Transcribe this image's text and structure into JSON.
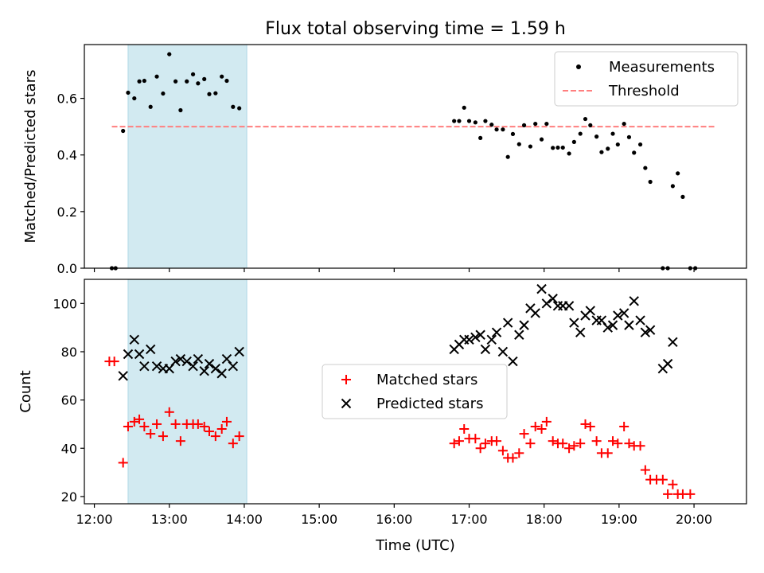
{
  "figure": {
    "title": "Flux total observing time = 1.59 h",
    "xlabel": "Time (UTC)"
  },
  "colors": {
    "shade": "#add8e6",
    "threshold": "#ff7f7f",
    "measurements": "#000000",
    "matched": "#ff0000",
    "predicted": "#000000"
  },
  "chart_data": [
    {
      "type": "scatter",
      "ylabel": "Matched/Predicted stars",
      "xlim": [
        "11:52",
        "20:42"
      ],
      "ylim": [
        0.0,
        0.79
      ],
      "xticks": [
        "12:00",
        "13:00",
        "14:00",
        "15:00",
        "16:00",
        "17:00",
        "18:00",
        "19:00",
        "20:00"
      ],
      "xtick_labels_visible": false,
      "yticks": [
        0.0,
        0.2,
        0.4,
        0.6
      ],
      "ytick_labels": [
        "0.0",
        "0.2",
        "0.4",
        "0.6"
      ],
      "shaded_interval": [
        "12:27",
        "14:02"
      ],
      "legend": {
        "location": "upper right",
        "entries": [
          "Measurements",
          "Threshold"
        ]
      },
      "threshold": {
        "name": "Threshold",
        "style": "dashed",
        "value": 0.5,
        "x_range": [
          "12:14",
          "20:18"
        ]
      },
      "series": [
        {
          "name": "Measurements",
          "marker": "dot",
          "points": [
            [
              "12:14",
              0.0
            ],
            [
              "12:17",
              0.0
            ],
            [
              "12:23",
              0.485
            ],
            [
              "12:27",
              0.62
            ],
            [
              "12:32",
              0.6
            ],
            [
              "12:36",
              0.66
            ],
            [
              "12:40",
              0.662
            ],
            [
              "12:45",
              0.57
            ],
            [
              "12:50",
              0.677
            ],
            [
              "12:55",
              0.617
            ],
            [
              "13:00",
              0.756
            ],
            [
              "13:05",
              0.66
            ],
            [
              "13:09",
              0.558
            ],
            [
              "13:14",
              0.66
            ],
            [
              "13:19",
              0.685
            ],
            [
              "13:23",
              0.653
            ],
            [
              "13:28",
              0.668
            ],
            [
              "13:32",
              0.615
            ],
            [
              "13:37",
              0.618
            ],
            [
              "13:42",
              0.677
            ],
            [
              "13:46",
              0.662
            ],
            [
              "13:51",
              0.57
            ],
            [
              "13:56",
              0.565
            ],
            [
              "16:48",
              0.52
            ],
            [
              "16:52",
              0.52
            ],
            [
              "16:56",
              0.567
            ],
            [
              "17:00",
              0.52
            ],
            [
              "17:05",
              0.515
            ],
            [
              "17:09",
              0.46
            ],
            [
              "17:13",
              0.52
            ],
            [
              "17:18",
              0.507
            ],
            [
              "17:22",
              0.49
            ],
            [
              "17:27",
              0.49
            ],
            [
              "17:31",
              0.393
            ],
            [
              "17:35",
              0.474
            ],
            [
              "17:40",
              0.438
            ],
            [
              "17:44",
              0.505
            ],
            [
              "17:49",
              0.43
            ],
            [
              "17:53",
              0.51
            ],
            [
              "17:58",
              0.455
            ],
            [
              "18:02",
              0.51
            ],
            [
              "18:07",
              0.425
            ],
            [
              "18:11",
              0.426
            ],
            [
              "18:15",
              0.426
            ],
            [
              "18:20",
              0.405
            ],
            [
              "18:24",
              0.446
            ],
            [
              "18:29",
              0.475
            ],
            [
              "18:33",
              0.527
            ],
            [
              "18:37",
              0.505
            ],
            [
              "18:42",
              0.465
            ],
            [
              "18:46",
              0.41
            ],
            [
              "18:51",
              0.422
            ],
            [
              "18:55",
              0.475
            ],
            [
              "18:59",
              0.437
            ],
            [
              "19:04",
              0.51
            ],
            [
              "19:08",
              0.463
            ],
            [
              "19:12",
              0.408
            ],
            [
              "19:17",
              0.437
            ],
            [
              "19:21",
              0.354
            ],
            [
              "19:25",
              0.305
            ],
            [
              "19:35",
              0.0
            ],
            [
              "19:39",
              0.0
            ],
            [
              "19:43",
              0.29
            ],
            [
              "19:47",
              0.335
            ],
            [
              "19:51",
              0.252
            ],
            [
              "19:57",
              0.0
            ],
            [
              "20:01",
              0.0
            ]
          ]
        }
      ]
    },
    {
      "type": "scatter",
      "ylabel": "Count",
      "xlabel": "Time (UTC)",
      "xlim": [
        "11:52",
        "20:42"
      ],
      "ylim": [
        17,
        110
      ],
      "xticks": [
        "12:00",
        "13:00",
        "14:00",
        "15:00",
        "16:00",
        "17:00",
        "18:00",
        "19:00",
        "20:00"
      ],
      "xtick_labels": [
        "12:00",
        "13:00",
        "14:00",
        "15:00",
        "16:00",
        "17:00",
        "18:00",
        "19:00",
        "20:00"
      ],
      "yticks": [
        20,
        40,
        60,
        80,
        100
      ],
      "ytick_labels": [
        "20",
        "40",
        "60",
        "80",
        "100"
      ],
      "shaded_interval": [
        "12:27",
        "14:02"
      ],
      "legend": {
        "location": "center",
        "entries": [
          "Matched stars",
          "Predicted stars"
        ]
      },
      "series": [
        {
          "name": "Matched stars",
          "marker": "plus",
          "points": [
            [
              "12:12",
              76
            ],
            [
              "12:16",
              76
            ],
            [
              "12:23",
              34
            ],
            [
              "12:27",
              49
            ],
            [
              "12:32",
              51
            ],
            [
              "12:36",
              52
            ],
            [
              "12:40",
              49
            ],
            [
              "12:45",
              46
            ],
            [
              "12:50",
              50
            ],
            [
              "12:55",
              45
            ],
            [
              "13:00",
              55
            ],
            [
              "13:05",
              50
            ],
            [
              "13:09",
              43
            ],
            [
              "13:14",
              50
            ],
            [
              "13:19",
              50
            ],
            [
              "13:23",
              50
            ],
            [
              "13:28",
              49
            ],
            [
              "13:32",
              47
            ],
            [
              "13:37",
              45
            ],
            [
              "13:42",
              48
            ],
            [
              "13:46",
              51
            ],
            [
              "13:51",
              42
            ],
            [
              "13:56",
              45
            ],
            [
              "16:48",
              42
            ],
            [
              "16:52",
              43
            ],
            [
              "16:56",
              48
            ],
            [
              "17:00",
              44
            ],
            [
              "17:05",
              44
            ],
            [
              "17:09",
              40
            ],
            [
              "17:13",
              42
            ],
            [
              "17:18",
              43
            ],
            [
              "17:22",
              43
            ],
            [
              "17:27",
              39
            ],
            [
              "17:31",
              36
            ],
            [
              "17:35",
              36
            ],
            [
              "17:40",
              38
            ],
            [
              "17:44",
              46
            ],
            [
              "17:49",
              42
            ],
            [
              "17:53",
              49
            ],
            [
              "17:58",
              48
            ],
            [
              "18:02",
              51
            ],
            [
              "18:07",
              43
            ],
            [
              "18:11",
              42
            ],
            [
              "18:15",
              42
            ],
            [
              "18:20",
              40
            ],
            [
              "18:24",
              41
            ],
            [
              "18:29",
              42
            ],
            [
              "18:33",
              50
            ],
            [
              "18:37",
              49
            ],
            [
              "18:42",
              43
            ],
            [
              "18:46",
              38
            ],
            [
              "18:51",
              38
            ],
            [
              "18:55",
              43
            ],
            [
              "18:59",
              42
            ],
            [
              "19:04",
              49
            ],
            [
              "19:08",
              42
            ],
            [
              "19:12",
              41
            ],
            [
              "19:17",
              41
            ],
            [
              "19:21",
              31
            ],
            [
              "19:25",
              27
            ],
            [
              "19:30",
              27
            ],
            [
              "19:35",
              27
            ],
            [
              "19:39",
              21
            ],
            [
              "19:43",
              25
            ],
            [
              "19:47",
              21
            ],
            [
              "19:51",
              21
            ],
            [
              "19:57",
              21
            ]
          ]
        },
        {
          "name": "Predicted stars",
          "marker": "x",
          "points": [
            [
              "12:23",
              70
            ],
            [
              "12:27",
              79
            ],
            [
              "12:32",
              85
            ],
            [
              "12:36",
              79
            ],
            [
              "12:40",
              74
            ],
            [
              "12:45",
              81
            ],
            [
              "12:50",
              74
            ],
            [
              "12:55",
              73
            ],
            [
              "13:00",
              73
            ],
            [
              "13:05",
              76
            ],
            [
              "13:09",
              77
            ],
            [
              "13:14",
              76
            ],
            [
              "13:19",
              74
            ],
            [
              "13:23",
              77
            ],
            [
              "13:28",
              72
            ],
            [
              "13:32",
              75
            ],
            [
              "13:37",
              73
            ],
            [
              "13:42",
              71
            ],
            [
              "13:46",
              77
            ],
            [
              "13:51",
              74
            ],
            [
              "13:56",
              80
            ],
            [
              "16:48",
              81
            ],
            [
              "16:52",
              83
            ],
            [
              "16:56",
              85
            ],
            [
              "17:00",
              85
            ],
            [
              "17:05",
              86
            ],
            [
              "17:09",
              87
            ],
            [
              "17:13",
              81
            ],
            [
              "17:18",
              85
            ],
            [
              "17:22",
              88
            ],
            [
              "17:27",
              80
            ],
            [
              "17:31",
              92
            ],
            [
              "17:35",
              76
            ],
            [
              "17:40",
              87
            ],
            [
              "17:44",
              91
            ],
            [
              "17:49",
              98
            ],
            [
              "17:53",
              96
            ],
            [
              "17:58",
              106
            ],
            [
              "18:02",
              100
            ],
            [
              "18:07",
              102
            ],
            [
              "18:11",
              99
            ],
            [
              "18:15",
              99
            ],
            [
              "18:20",
              99
            ],
            [
              "18:24",
              92
            ],
            [
              "18:29",
              88
            ],
            [
              "18:33",
              95
            ],
            [
              "18:37",
              97
            ],
            [
              "18:42",
              93
            ],
            [
              "18:46",
              93
            ],
            [
              "18:51",
              90
            ],
            [
              "18:55",
              91
            ],
            [
              "18:59",
              95
            ],
            [
              "19:04",
              96
            ],
            [
              "19:08",
              91
            ],
            [
              "19:12",
              101
            ],
            [
              "19:17",
              93
            ],
            [
              "19:21",
              88
            ],
            [
              "19:25",
              89
            ],
            [
              "19:35",
              73
            ],
            [
              "19:39",
              75
            ],
            [
              "19:43",
              84
            ]
          ]
        }
      ]
    }
  ]
}
